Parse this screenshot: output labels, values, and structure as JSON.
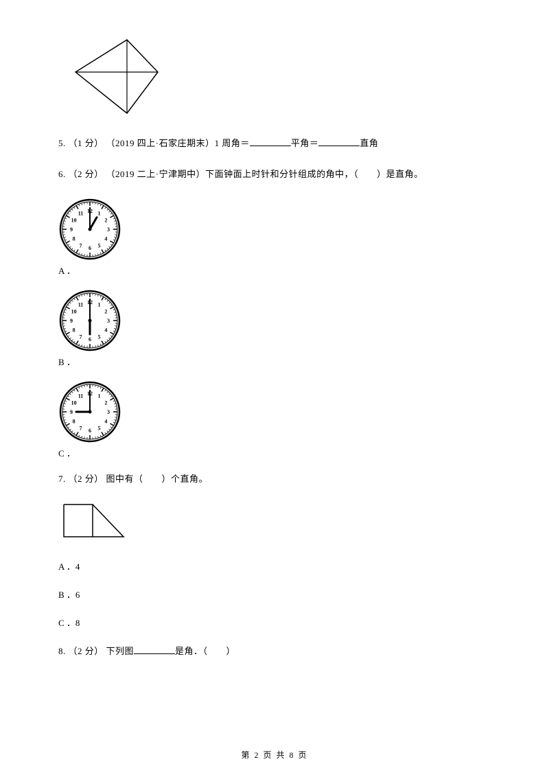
{
  "q5": {
    "prefix": "5. （1 分） （2019 四上·石家庄期末）1 周角＝",
    "mid": "平角＝",
    "suffix": "直角"
  },
  "q6": {
    "text": "6. （2 分） （2019 二上·宁津期中）下面钟面上时针和分针组成的角中，（　　）是直角。",
    "optA": "A ．",
    "optB": "B ．",
    "optC": "C ．",
    "clockA": {
      "hour": 1,
      "minute": 0
    },
    "clockB": {
      "hour": 6,
      "minute": 0
    },
    "clockC": {
      "hour": 9,
      "minute": 0
    }
  },
  "q7": {
    "text": "7. （2 分） 图中有（　　）个直角。",
    "optA": "A ．4",
    "optB": "B ．6",
    "optC": "C ．8"
  },
  "q8": {
    "prefix": "8. （2 分） 下列图",
    "suffix": "是角．（　　）"
  },
  "footer": "第 2 页 共 8 页",
  "style": {
    "stroke": "#000000",
    "clockFill": "#ffffff",
    "fontSize": 13
  }
}
